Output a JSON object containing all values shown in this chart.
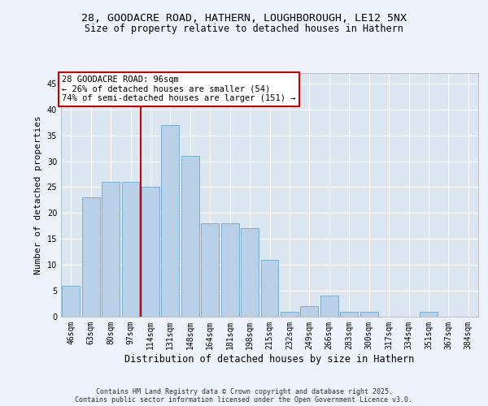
{
  "title_line1": "28, GOODACRE ROAD, HATHERN, LOUGHBOROUGH, LE12 5NX",
  "title_line2": "Size of property relative to detached houses in Hathern",
  "xlabel": "Distribution of detached houses by size in Hathern",
  "ylabel": "Number of detached properties",
  "categories": [
    "46sqm",
    "63sqm",
    "80sqm",
    "97sqm",
    "114sqm",
    "131sqm",
    "148sqm",
    "164sqm",
    "181sqm",
    "198sqm",
    "215sqm",
    "232sqm",
    "249sqm",
    "266sqm",
    "283sqm",
    "300sqm",
    "317sqm",
    "334sqm",
    "351sqm",
    "367sqm",
    "384sqm"
  ],
  "values": [
    6,
    23,
    26,
    26,
    25,
    37,
    31,
    18,
    18,
    17,
    11,
    1,
    2,
    4,
    1,
    1,
    0,
    0,
    1,
    0,
    0
  ],
  "bar_color": "#b8d0e8",
  "bar_edge_color": "#7aadcf",
  "annotation_text": "28 GOODACRE ROAD: 96sqm\n← 26% of detached houses are smaller (54)\n74% of semi-detached houses are larger (151) →",
  "annotation_box_color": "#ffffff",
  "annotation_box_edge_color": "#cc0000",
  "vline_color": "#cc0000",
  "vline_x_index": 3.5,
  "ylim": [
    0,
    47
  ],
  "yticks": [
    0,
    5,
    10,
    15,
    20,
    25,
    30,
    35,
    40,
    45
  ],
  "background_color": "#eef2fa",
  "plot_bg_color": "#dce6f0",
  "grid_color": "#ffffff",
  "footer_text": "Contains HM Land Registry data © Crown copyright and database right 2025.\nContains public sector information licensed under the Open Government Licence v3.0.",
  "title_fontsize": 9.5,
  "subtitle_fontsize": 8.5,
  "tick_fontsize": 7,
  "ylabel_fontsize": 8,
  "xlabel_fontsize": 8.5,
  "footer_fontsize": 6,
  "annot_fontsize": 7.5
}
